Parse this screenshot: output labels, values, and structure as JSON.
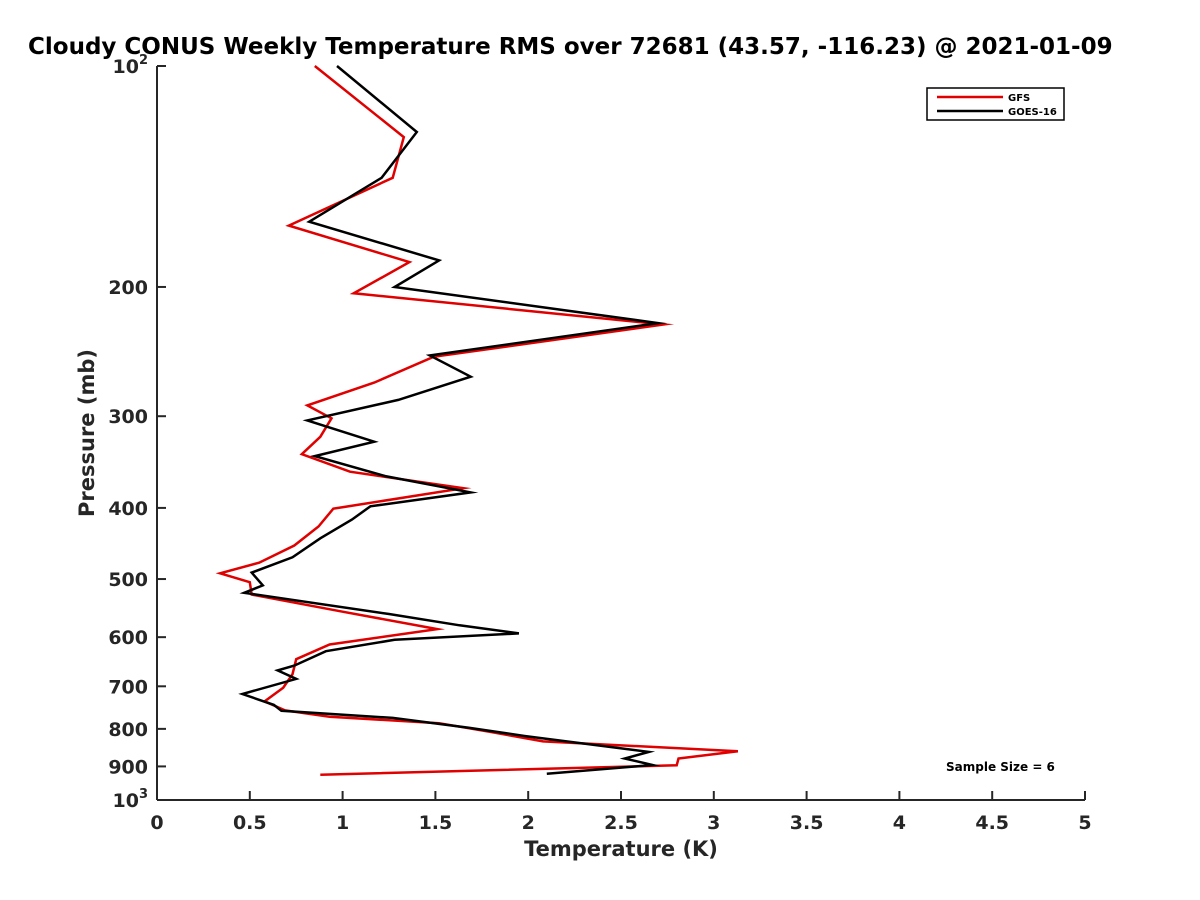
{
  "chart_data": {
    "type": "line",
    "title": "Cloudy CONUS Weekly Temperature RMS over 72681 (43.57, -116.23) @ 2021-01-09",
    "xlabel": "Temperature (K)",
    "ylabel": "Pressure (mb)",
    "xlim": [
      0,
      5
    ],
    "ylim": [
      100,
      1000
    ],
    "y_scale": "log",
    "y_reversed": true,
    "grid": false,
    "legend_position": "top-right",
    "x_ticks": [
      "0",
      "0.5",
      "1",
      "1.5",
      "2",
      "2.5",
      "3",
      "3.5",
      "4",
      "4.5",
      "5"
    ],
    "y_ticks": [
      {
        "base": "10",
        "exp": "2"
      },
      {
        "base": "200",
        "exp": ""
      },
      {
        "base": "300",
        "exp": ""
      },
      {
        "base": "400",
        "exp": ""
      },
      {
        "base": "500",
        "exp": ""
      },
      {
        "base": "600",
        "exp": ""
      },
      {
        "base": "700",
        "exp": ""
      },
      {
        "base": "800",
        "exp": ""
      },
      {
        "base": "900",
        "exp": ""
      },
      {
        "base": "10",
        "exp": "3"
      }
    ],
    "series": [
      {
        "name": "GFS",
        "color": "#e00000",
        "points": [
          [
            0.85,
            100
          ],
          [
            1.33,
            125
          ],
          [
            1.27,
            142
          ],
          [
            0.71,
            165
          ],
          [
            1.36,
            185
          ],
          [
            1.06,
            204
          ],
          [
            2.73,
            225
          ],
          [
            1.49,
            249
          ],
          [
            1.17,
            270
          ],
          [
            0.81,
            290
          ],
          [
            0.94,
            302
          ],
          [
            0.88,
            320
          ],
          [
            0.78,
            338
          ],
          [
            1.04,
            357
          ],
          [
            1.65,
            376
          ],
          [
            0.95,
            401
          ],
          [
            0.87,
            424
          ],
          [
            0.74,
            450
          ],
          [
            0.55,
            475
          ],
          [
            0.34,
            491
          ],
          [
            0.5,
            505
          ],
          [
            0.51,
            525
          ],
          [
            1.0,
            554
          ],
          [
            1.51,
            585
          ],
          [
            0.93,
            614
          ],
          [
            0.75,
            643
          ],
          [
            0.73,
            674
          ],
          [
            0.68,
            703
          ],
          [
            0.58,
            734
          ],
          [
            0.69,
            755
          ],
          [
            0.93,
            770
          ],
          [
            1.52,
            786
          ],
          [
            1.8,
            808
          ],
          [
            2.08,
            832
          ],
          [
            3.13,
            858
          ],
          [
            2.81,
            878
          ],
          [
            2.8,
            897
          ],
          [
            0.88,
            924
          ]
        ]
      },
      {
        "name": "GOES-16",
        "color": "#000000",
        "points": [
          [
            0.97,
            100
          ],
          [
            1.4,
            123
          ],
          [
            1.21,
            142
          ],
          [
            0.82,
            163
          ],
          [
            1.52,
            184
          ],
          [
            1.28,
            200
          ],
          [
            2.7,
            224
          ],
          [
            1.47,
            248
          ],
          [
            1.69,
            265
          ],
          [
            1.3,
            285
          ],
          [
            0.81,
            304
          ],
          [
            1.17,
            325
          ],
          [
            0.85,
            340
          ],
          [
            1.23,
            362
          ],
          [
            1.69,
            381
          ],
          [
            1.15,
            398
          ],
          [
            1.05,
            415
          ],
          [
            0.88,
            440
          ],
          [
            0.73,
            467
          ],
          [
            0.51,
            490
          ],
          [
            0.57,
            510
          ],
          [
            0.47,
            522
          ],
          [
            1.25,
            558
          ],
          [
            1.63,
            578
          ],
          [
            1.95,
            593
          ],
          [
            1.28,
            605
          ],
          [
            0.91,
            627
          ],
          [
            0.74,
            656
          ],
          [
            0.65,
            666
          ],
          [
            0.75,
            684
          ],
          [
            0.46,
            717
          ],
          [
            0.63,
            742
          ],
          [
            0.67,
            756
          ],
          [
            1.27,
            773
          ],
          [
            1.68,
            797
          ],
          [
            1.98,
            818
          ],
          [
            2.65,
            860
          ],
          [
            2.52,
            878
          ],
          [
            2.67,
            896
          ],
          [
            2.1,
            921
          ]
        ]
      }
    ],
    "annotations": [
      {
        "text": "Sample Size = 6",
        "position": "bottom-right"
      }
    ]
  }
}
